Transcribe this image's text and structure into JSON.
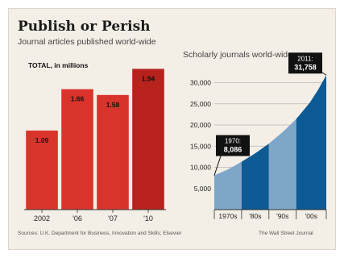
{
  "header": {
    "title": "Publish or Perish"
  },
  "footer": {
    "source": "Sources: U.K. Department for Business, Innovation and Skills; Elsevier",
    "credit": "The Wall Street Journal"
  },
  "chart_data": [
    {
      "type": "bar",
      "title": "Journal articles published world-wide",
      "unit_label": "TOTAL, in millions",
      "categories": [
        "2002",
        "'06",
        "'07",
        "'10"
      ],
      "values": [
        1.09,
        1.66,
        1.58,
        1.94
      ],
      "value_labels": [
        "1.09",
        "1.66",
        "1.58",
        "1.94"
      ],
      "ylim": [
        0,
        2
      ],
      "grid": false,
      "colors": {
        "bar": "#d9342b",
        "bar_highlight": "#b7221c"
      }
    },
    {
      "type": "area",
      "title": "Scholarly journals world-wide",
      "xlim": [
        1970,
        2011
      ],
      "ylim": [
        0,
        32000
      ],
      "yticks": [
        5000,
        10000,
        15000,
        20000,
        25000,
        30000
      ],
      "ytick_labels": [
        "5,000",
        "10,000",
        "15,000",
        "20,000",
        "25,000",
        "30,000"
      ],
      "decades": [
        {
          "label": "1970s",
          "start": 1970,
          "end": 1980,
          "shade": "light"
        },
        {
          "label": "'80s",
          "start": 1980,
          "end": 1990,
          "shade": "dark"
        },
        {
          "label": "'90s",
          "start": 1990,
          "end": 2000,
          "shade": "light"
        },
        {
          "label": "'00s",
          "start": 2000,
          "end": 2011,
          "shade": "dark"
        }
      ],
      "x": [
        1970,
        1975,
        1980,
        1985,
        1990,
        1995,
        2000,
        2005,
        2008,
        2011
      ],
      "y": [
        8086,
        9500,
        11300,
        13300,
        15600,
        18300,
        21400,
        25300,
        28300,
        31758
      ],
      "annotations": [
        {
          "x": 1970,
          "y": 8086,
          "label_top": "1970:",
          "label_value": "8,086"
        },
        {
          "x": 2011,
          "y": 31758,
          "label_top": "2011:",
          "label_value": "31,758"
        }
      ],
      "grid": true,
      "colors": {
        "light": "#7ea6c9",
        "dark": "#0d5a94",
        "grid": "#b8b8b8"
      }
    }
  ]
}
